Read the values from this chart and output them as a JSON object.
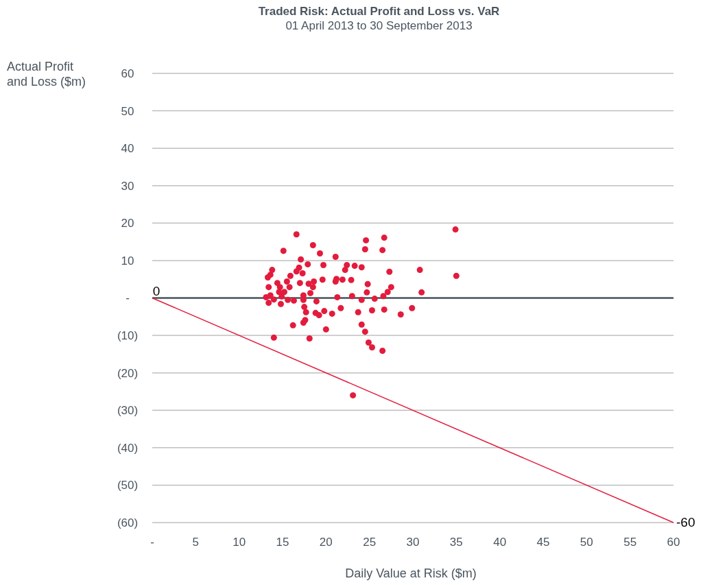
{
  "chart_data": {
    "type": "scatter",
    "title": "Traded Risk: Actual Profit and Loss vs. VaR",
    "subtitle": "01 April 2013 to 30 September 2013",
    "xlabel": "Daily Value at Risk ($m)",
    "ylabel": "Actual Profit and Loss ($m)",
    "xlim": [
      0,
      60
    ],
    "xticks": [
      {
        "value": 0,
        "label": "-"
      },
      5,
      10,
      15,
      20,
      25,
      30,
      35,
      40,
      45,
      50,
      55,
      60
    ],
    "ylim": [
      -60,
      60
    ],
    "yticks": [
      {
        "value": -60,
        "label": "(60)"
      },
      {
        "value": -50,
        "label": "(50)"
      },
      {
        "value": -40,
        "label": "(40)"
      },
      {
        "value": -30,
        "label": "(30)"
      },
      {
        "value": -20,
        "label": "(20)"
      },
      {
        "value": -10,
        "label": "(10)"
      },
      {
        "value": 0,
        "label": "-"
      },
      10,
      20,
      30,
      40,
      50,
      60
    ],
    "grid": "y",
    "ref_lines": [
      {
        "axis": "y",
        "value": 0,
        "color": "#4a555f"
      }
    ],
    "annotations": [
      {
        "text": "0",
        "x": 0,
        "y": 0
      },
      {
        "text": "-60",
        "x": 60,
        "y": -60
      }
    ],
    "series": [
      {
        "marker": "circle",
        "color": "#e31b3d",
        "x": [
          13.1,
          13.4,
          13.3,
          13.6,
          13.8,
          13.4,
          14.0,
          13.6,
          14.0,
          14.4,
          14.7,
          14.6,
          14.8,
          14.9,
          15.1,
          15.2,
          15.5,
          15.8,
          15.6,
          15.9,
          16.2,
          16.3,
          16.6,
          16.6,
          16.9,
          17.0,
          17.1,
          17.3,
          17.4,
          17.4,
          17.5,
          17.6,
          17.4,
          17.7,
          17.9,
          18.0,
          18.1,
          18.2,
          18.5,
          18.6,
          18.5,
          18.8,
          18.9,
          19.2,
          19.3,
          19.6,
          19.7,
          19.8,
          20.0,
          20.7,
          21.1,
          21.1,
          21.2,
          21.3,
          21.7,
          21.9,
          22.2,
          22.4,
          22.9,
          23.0,
          23.1,
          23.3,
          23.7,
          24.1,
          24.1,
          24.1,
          24.5,
          24.6,
          24.5,
          24.7,
          24.8,
          24.9,
          25.3,
          25.3,
          25.6,
          26.5,
          26.7,
          26.6,
          26.7,
          27.1,
          27.3,
          27.5,
          28.6,
          29.9,
          30.8,
          31.0,
          34.9,
          35.0,
          26.5
        ],
        "values": [
          0.2,
          -1.3,
          5.5,
          6.2,
          7.5,
          2.9,
          -10.6,
          0.7,
          -0.4,
          4.0,
          2.9,
          1.6,
          -1.6,
          0.4,
          12.6,
          1.6,
          4.4,
          2.9,
          -0.5,
          5.9,
          -7.3,
          -0.7,
          7.1,
          17.0,
          8.1,
          4.0,
          10.3,
          6.6,
          0.7,
          -0.5,
          -2.4,
          -5.9,
          -6.6,
          -3.8,
          9.0,
          3.8,
          -10.8,
          1.3,
          14.1,
          4.4,
          2.9,
          -4.0,
          -0.9,
          -4.6,
          11.9,
          4.9,
          8.8,
          -3.5,
          -8.4,
          -4.2,
          11.0,
          4.4,
          5.1,
          0.2,
          -2.7,
          4.9,
          7.5,
          8.8,
          4.8,
          0.5,
          -26.0,
          8.6,
          -3.8,
          8.2,
          -0.5,
          -7.1,
          -9.0,
          15.4,
          13.0,
          1.5,
          3.7,
          -11.9,
          -3.3,
          -13.2,
          -0.2,
          12.8,
          16.1,
          0.5,
          -3.1,
          1.6,
          7.0,
          2.9,
          -4.4,
          -2.7,
          7.5,
          1.5,
          18.3,
          5.9,
          -14.1
        ]
      },
      {
        "type": "line",
        "color": "#e31b3d",
        "x": [
          0,
          60
        ],
        "values": [
          0,
          -60
        ]
      }
    ]
  }
}
